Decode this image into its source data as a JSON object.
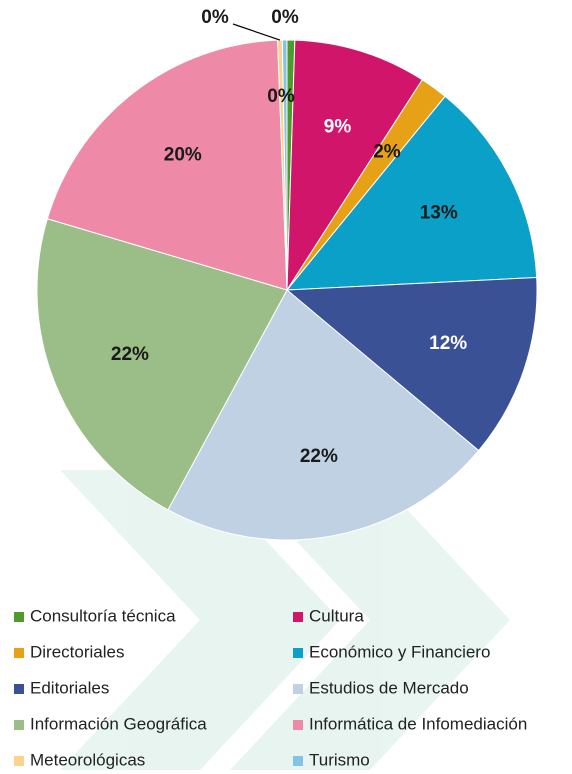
{
  "chart_data": {
    "type": "pie",
    "categories": [
      "Consultoría técnica",
      "Cultura",
      "Directoriales",
      "Económico y Financiero",
      "Editoriales",
      "Estudios de Mercado",
      "Información Geográfica",
      "Informática de Infomediación",
      "Meteorológicas",
      "Turismo"
    ],
    "values": [
      0.5,
      8.6,
      1.8,
      13.3,
      11.9,
      21.8,
      21.7,
      19.8,
      0.3,
      0.3
    ],
    "value_labels": [
      "0%",
      "9%",
      "2%",
      "13%",
      "12%",
      "22%",
      "22%",
      "20%",
      "0%",
      "0%"
    ],
    "colors": [
      "#4e9a2a",
      "#d1156b",
      "#e6a117",
      "#0aa0c8",
      "#3a5196",
      "#bfd1e3",
      "#9bbd87",
      "#ee8aa8",
      "#fcd38d",
      "#84c2e6"
    ]
  }
}
